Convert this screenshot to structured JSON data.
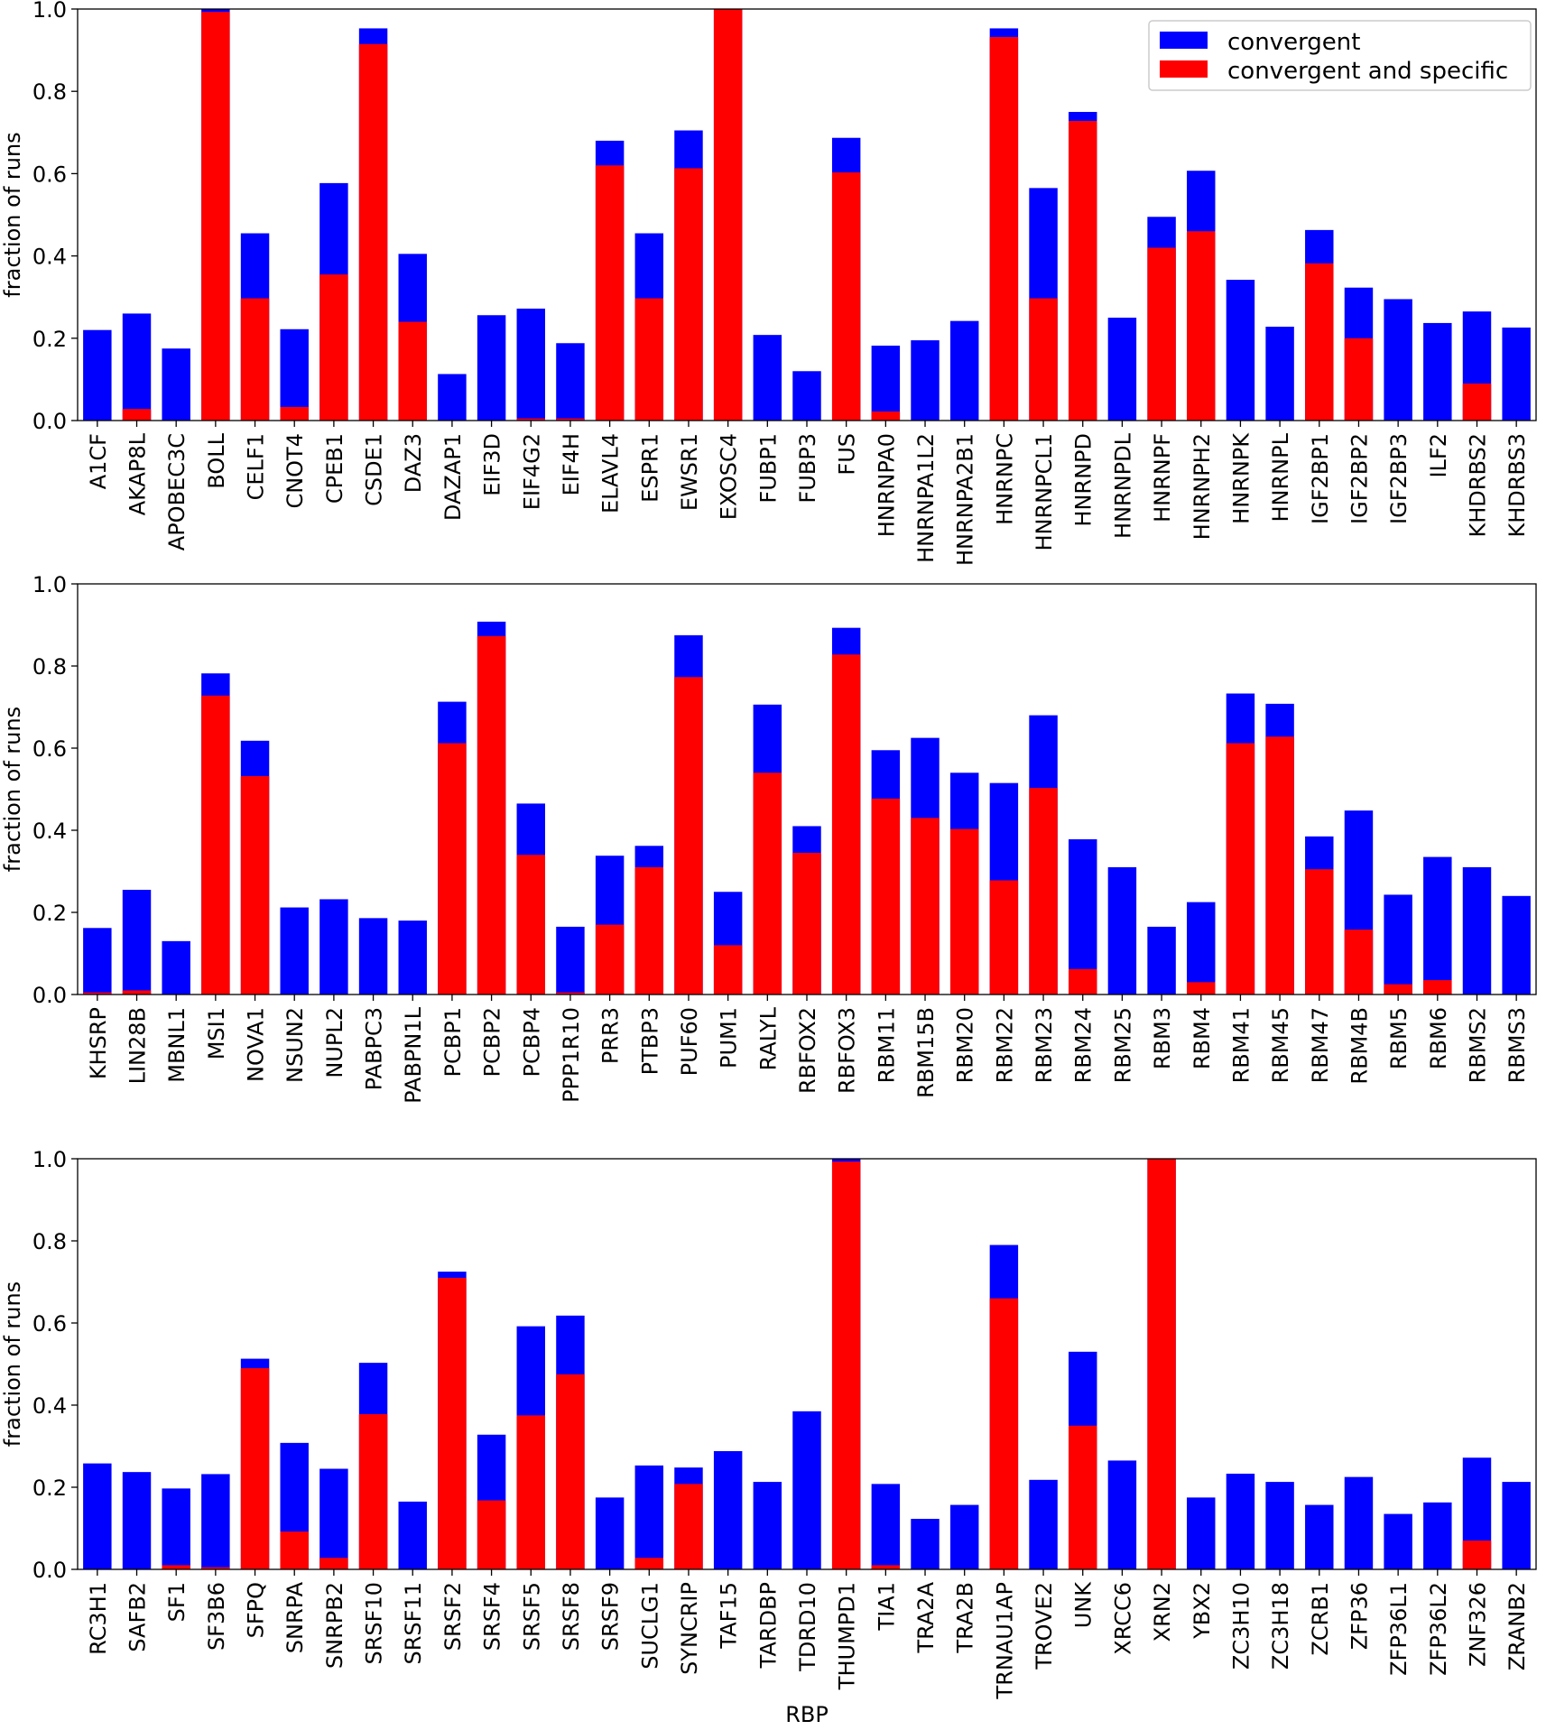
{
  "colors": {
    "convergent": "#0000ff",
    "specific": "#ff0000",
    "axis": "#000000"
  },
  "legend": {
    "placement": "top-right",
    "entries": [
      "convergent",
      "convergent and specific"
    ]
  },
  "chart_data": [
    {
      "type": "bar",
      "stacked": "overlay",
      "ylabel": "fraction of runs",
      "xlabel": "",
      "ylim": [
        0,
        1.0
      ],
      "yticks": [
        "0.0",
        "0.2",
        "0.4",
        "0.6",
        "0.8",
        "1.0"
      ],
      "categories": [
        "A1CF",
        "AKAP8L",
        "APOBEC3C",
        "BOLL",
        "CELF1",
        "CNOT4",
        "CPEB1",
        "CSDE1",
        "DAZ3",
        "DAZAP1",
        "EIF3D",
        "EIF4G2",
        "EIF4H",
        "ELAVL4",
        "ESPR1",
        "EWSR1",
        "EXOSC4",
        "FUBP1",
        "FUBP3",
        "FUS",
        "HNRNPA0",
        "HNRNPA1L2",
        "HNRNPA2B1",
        "HNRNPC",
        "HNRNPCL1",
        "HNRNPD",
        "HNRNPDL",
        "HNRNPF",
        "HNRNPH2",
        "HNRNPK",
        "HNRNPL",
        "IGF2BP1",
        "IGF2BP2",
        "IGF2BP3",
        "ILF2",
        "KHDRBS2",
        "KHDRBS3"
      ],
      "series": [
        {
          "name": "convergent",
          "values": [
            0.22,
            0.26,
            0.175,
            1.0,
            0.455,
            0.222,
            0.577,
            0.953,
            0.405,
            0.113,
            0.256,
            0.272,
            0.188,
            0.68,
            0.455,
            0.705,
            1.0,
            0.208,
            0.12,
            0.687,
            0.182,
            0.195,
            0.242,
            0.953,
            0.565,
            0.75,
            0.25,
            0.495,
            0.607,
            0.342,
            0.228,
            0.463,
            0.323,
            0.295,
            0.237,
            0.265,
            0.226
          ]
        },
        {
          "name": "convergent and specific",
          "values": [
            0,
            0.028,
            0,
            0.993,
            0.297,
            0.033,
            0.355,
            0.915,
            0.24,
            0,
            0,
            0.005,
            0.005,
            0.62,
            0.297,
            0.613,
            1.0,
            0,
            0,
            0.603,
            0.022,
            0,
            0,
            0.932,
            0.297,
            0.728,
            0,
            0.42,
            0.46,
            0,
            0,
            0.382,
            0.2,
            0,
            0,
            0.09,
            0
          ]
        }
      ]
    },
    {
      "type": "bar",
      "stacked": "overlay",
      "ylabel": "fraction of runs",
      "xlabel": "",
      "ylim": [
        0,
        1.0
      ],
      "yticks": [
        "0.0",
        "0.2",
        "0.4",
        "0.6",
        "0.8",
        "1.0"
      ],
      "categories": [
        "KHSRP",
        "LIN28B",
        "MBNL1",
        "MSI1",
        "NOVA1",
        "NSUN2",
        "NUPL2",
        "PABPC3",
        "PABPN1L",
        "PCBP1",
        "PCBP2",
        "PCBP4",
        "PPP1R10",
        "PRR3",
        "PTBP3",
        "PUF60",
        "PUM1",
        "RALYL",
        "RBFOX2",
        "RBFOX3",
        "RBM11",
        "RBM15B",
        "RBM20",
        "RBM22",
        "RBM23",
        "RBM24",
        "RBM25",
        "RBM3",
        "RBM4",
        "RBM41",
        "RBM45",
        "RBM47",
        "RBM4B",
        "RBM5",
        "RBM6",
        "RBMS2",
        "RBMS3"
      ],
      "series": [
        {
          "name": "convergent",
          "values": [
            0.162,
            0.255,
            0.13,
            0.782,
            0.618,
            0.212,
            0.232,
            0.186,
            0.18,
            0.713,
            0.908,
            0.465,
            0.165,
            0.338,
            0.362,
            0.875,
            0.25,
            0.706,
            0.41,
            0.893,
            0.595,
            0.625,
            0.54,
            0.515,
            0.68,
            0.378,
            0.31,
            0.165,
            0.225,
            0.733,
            0.708,
            0.385,
            0.448,
            0.243,
            0.335,
            0.31,
            0.24
          ]
        },
        {
          "name": "convergent and specific",
          "values": [
            0.005,
            0.01,
            0,
            0.728,
            0.532,
            0,
            0,
            0,
            0,
            0.612,
            0.873,
            0.34,
            0.005,
            0.17,
            0.31,
            0.773,
            0.12,
            0.54,
            0.345,
            0.828,
            0.477,
            0.43,
            0.403,
            0.278,
            0.503,
            0.062,
            0,
            0,
            0.03,
            0.612,
            0.628,
            0.305,
            0.158,
            0.025,
            0.035,
            0,
            0
          ]
        }
      ]
    },
    {
      "type": "bar",
      "stacked": "overlay",
      "ylabel": "fraction of runs",
      "xlabel": "RBP",
      "ylim": [
        0,
        1.0
      ],
      "yticks": [
        "0.0",
        "0.2",
        "0.4",
        "0.6",
        "0.8",
        "1.0"
      ],
      "categories": [
        "RC3H1",
        "SAFB2",
        "SF1",
        "SF3B6",
        "SFPQ",
        "SNRPA",
        "SNRPB2",
        "SRSF10",
        "SRSF11",
        "SRSF2",
        "SRSF4",
        "SRSF5",
        "SRSF8",
        "SRSF9",
        "SUCLG1",
        "SYNCRIP",
        "TAF15",
        "TARDBP",
        "TDRD10",
        "THUMPD1",
        "TIA1",
        "TRA2A",
        "TRA2B",
        "TRNAU1AP",
        "TROVE2",
        "UNK",
        "XRCC6",
        "XRN2",
        "YBX2",
        "ZC3H10",
        "ZC3H18",
        "ZCRB1",
        "ZFP36",
        "ZFP36L1",
        "ZFP36L2",
        "ZNF326",
        "ZRANB2"
      ],
      "series": [
        {
          "name": "convergent",
          "values": [
            0.258,
            0.237,
            0.197,
            0.232,
            0.513,
            0.308,
            0.245,
            0.503,
            0.165,
            0.725,
            0.328,
            0.592,
            0.618,
            0.175,
            0.253,
            0.248,
            0.288,
            0.213,
            0.385,
            1.0,
            0.208,
            0.123,
            0.157,
            0.79,
            0.218,
            0.53,
            0.265,
            1.0,
            0.175,
            0.233,
            0.213,
            0.157,
            0.225,
            0.135,
            0.163,
            0.272,
            0.213
          ]
        },
        {
          "name": "convergent and specific",
          "values": [
            0,
            0,
            0.01,
            0.005,
            0.49,
            0.092,
            0.028,
            0.378,
            0,
            0.71,
            0.168,
            0.375,
            0.475,
            0,
            0.028,
            0.208,
            0,
            0,
            0,
            0.993,
            0.01,
            0,
            0,
            0.66,
            0,
            0.35,
            0,
            1.0,
            0,
            0,
            0,
            0,
            0,
            0,
            0,
            0.07,
            0
          ]
        }
      ]
    }
  ]
}
